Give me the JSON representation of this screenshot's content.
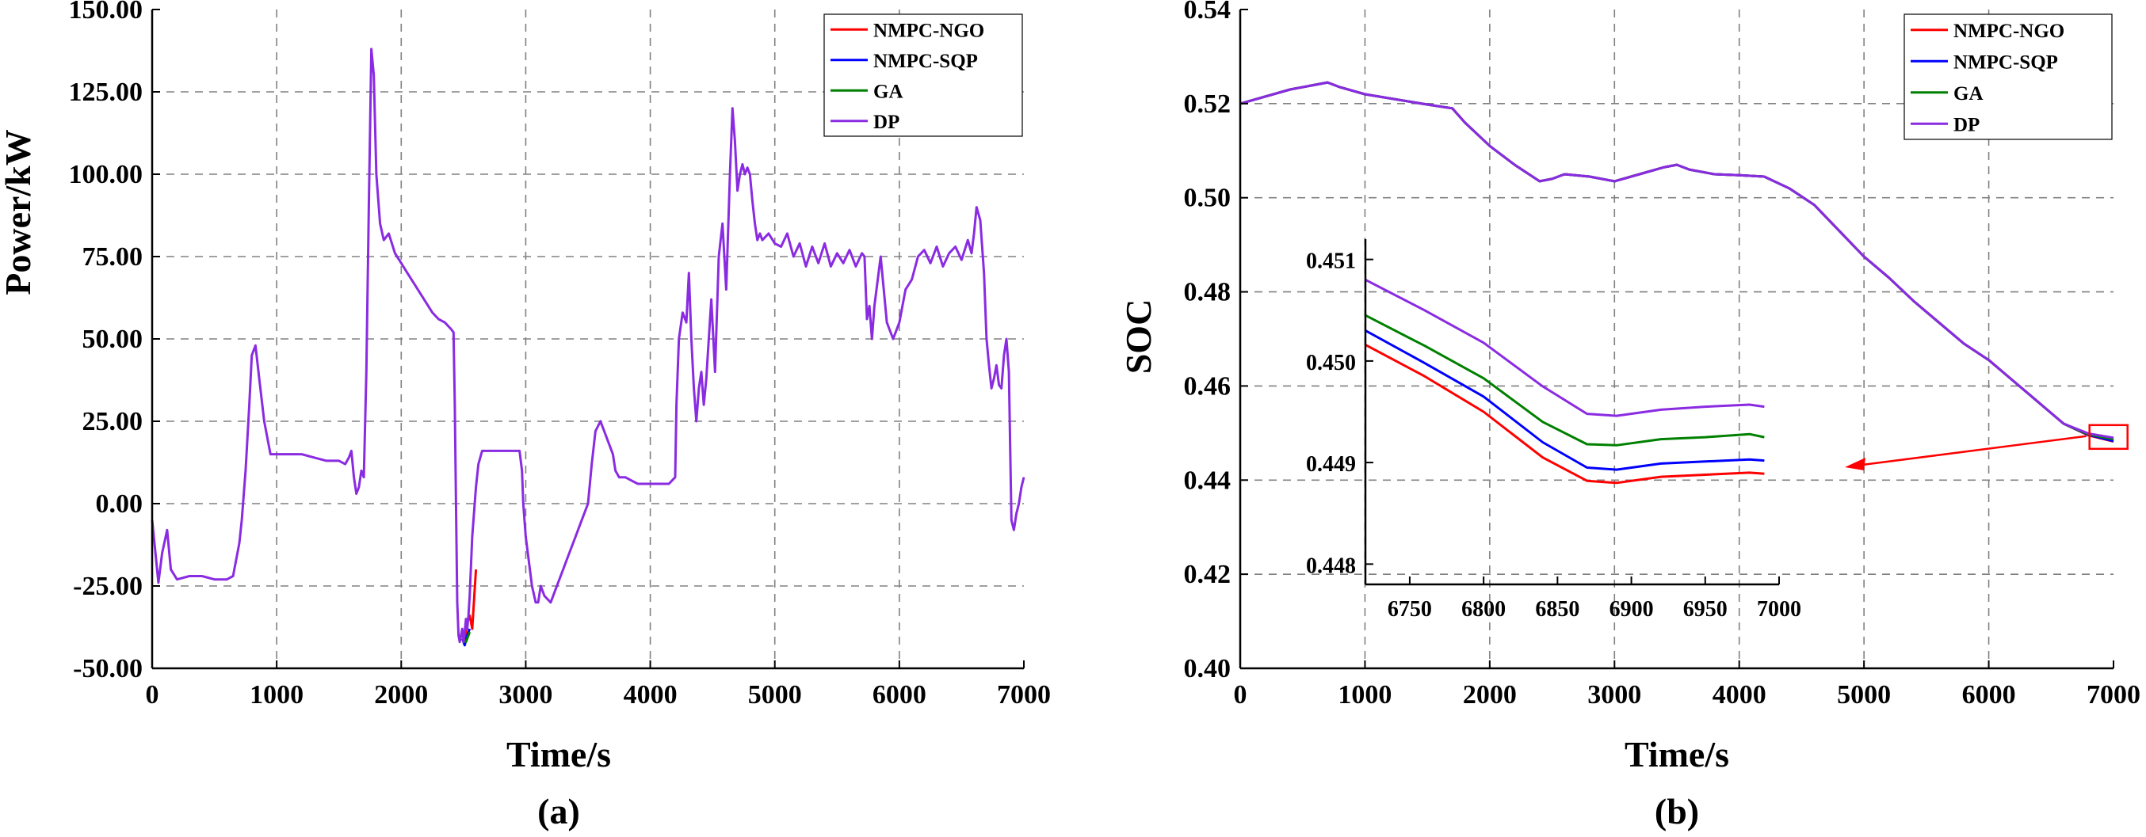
{
  "chart_data": [
    {
      "type": "line",
      "panel_label": "(a)",
      "xlabel": "Time/s",
      "ylabel": "Power/kW",
      "xlim": [
        0,
        7000
      ],
      "ylim": [
        -50,
        150
      ],
      "xticks": [
        "0",
        "1000",
        "2000",
        "3000",
        "4000",
        "5000",
        "6000",
        "7000"
      ],
      "yticks": [
        "-50.00",
        "-25.00",
        "0.00",
        "25.00",
        "50.00",
        "75.00",
        "100.00",
        "125.00",
        "150.00"
      ],
      "grid": true,
      "legend_position": "top-right",
      "series": [
        {
          "name": "NMPC-NGO",
          "color": "#ff0000",
          "x": [
            2490,
            2510,
            2530,
            2550,
            2570,
            2600
          ],
          "y": [
            -40,
            -42,
            -36,
            -34,
            -38,
            -20
          ]
        },
        {
          "name": "NMPC-SQP",
          "color": "#0000ff",
          "x": [
            2490,
            2510,
            2530,
            2550
          ],
          "y": [
            -41,
            -43,
            -40,
            -38
          ]
        },
        {
          "name": "GA",
          "color": "#008000",
          "x": [
            2490,
            2520,
            2550
          ],
          "y": [
            -41,
            -42,
            -39
          ]
        },
        {
          "name": "DP",
          "color": "#8a2be2",
          "x": [
            0,
            50,
            80,
            120,
            150,
            200,
            300,
            400,
            500,
            600,
            650,
            700,
            720,
            750,
            780,
            800,
            830,
            860,
            900,
            950,
            1000,
            1100,
            1200,
            1300,
            1400,
            1500,
            1550,
            1580,
            1600,
            1620,
            1640,
            1660,
            1680,
            1700,
            1720,
            1740,
            1760,
            1780,
            1800,
            1830,
            1860,
            1900,
            1950,
            2000,
            2050,
            2100,
            2150,
            2200,
            2250,
            2300,
            2350,
            2400,
            2420,
            2430,
            2440,
            2450,
            2460,
            2470,
            2480,
            2490,
            2500,
            2510,
            2520,
            2530,
            2540,
            2550,
            2570,
            2600,
            2620,
            2650,
            2700,
            2750,
            2800,
            2850,
            2900,
            2950,
            2970,
            2980,
            3000,
            3050,
            3080,
            3100,
            3120,
            3150,
            3200,
            3250,
            3300,
            3350,
            3400,
            3450,
            3500,
            3530,
            3560,
            3600,
            3650,
            3700,
            3720,
            3750,
            3800,
            3850,
            3900,
            3950,
            4000,
            4050,
            4100,
            4150,
            4200,
            4210,
            4230,
            4260,
            4290,
            4310,
            4330,
            4350,
            4370,
            4390,
            4410,
            4430,
            4450,
            4470,
            4490,
            4520,
            4550,
            4580,
            4610,
            4640,
            4660,
            4680,
            4700,
            4720,
            4740,
            4760,
            4780,
            4800,
            4820,
            4840,
            4860,
            4880,
            4900,
            4950,
            5000,
            5050,
            5100,
            5150,
            5200,
            5250,
            5300,
            5350,
            5400,
            5450,
            5500,
            5550,
            5600,
            5650,
            5700,
            5720,
            5740,
            5760,
            5780,
            5800,
            5850,
            5900,
            5950,
            6000,
            6050,
            6100,
            6150,
            6200,
            6250,
            6300,
            6350,
            6400,
            6450,
            6500,
            6550,
            6580,
            6600,
            6620,
            6650,
            6680,
            6700,
            6720,
            6740,
            6760,
            6780,
            6800,
            6820,
            6840,
            6860,
            6880,
            6900,
            6920,
            6940,
            6960,
            6980,
            7000
          ],
          "y": [
            -5,
            -24,
            -15,
            -8,
            -20,
            -23,
            -22,
            -22,
            -23,
            -23,
            -22,
            -12,
            -5,
            10,
            30,
            45,
            48,
            38,
            25,
            15,
            15,
            15,
            15,
            14,
            13,
            13,
            12,
            14,
            16,
            8,
            3,
            5,
            10,
            8,
            40,
            90,
            138,
            130,
            100,
            85,
            80,
            82,
            76,
            73,
            70,
            67,
            64,
            61,
            58,
            56,
            55,
            53,
            52,
            30,
            0,
            -30,
            -40,
            -42,
            -40,
            -38,
            -42,
            -39,
            -35,
            -38,
            -34,
            -28,
            -10,
            5,
            12,
            16,
            16,
            16,
            16,
            16,
            16,
            16,
            10,
            0,
            -10,
            -25,
            -30,
            -30,
            -25,
            -28,
            -30,
            -25,
            -20,
            -15,
            -10,
            -5,
            0,
            12,
            22,
            25,
            20,
            15,
            10,
            8,
            8,
            7,
            6,
            6,
            6,
            6,
            6,
            6,
            8,
            30,
            50,
            58,
            55,
            70,
            50,
            35,
            25,
            35,
            40,
            30,
            38,
            50,
            62,
            40,
            75,
            85,
            65,
            100,
            120,
            110,
            95,
            100,
            103,
            100,
            102,
            100,
            92,
            85,
            80,
            82,
            80,
            82,
            79,
            78,
            82,
            75,
            79,
            72,
            78,
            73,
            79,
            72,
            76,
            73,
            77,
            72,
            76,
            75,
            56,
            60,
            50,
            60,
            75,
            55,
            50,
            55,
            65,
            68,
            75,
            77,
            73,
            78,
            72,
            76,
            78,
            74,
            80,
            76,
            82,
            90,
            86,
            70,
            50,
            42,
            35,
            38,
            42,
            36,
            35,
            45,
            50,
            40,
            -5,
            -8,
            -3,
            0,
            5,
            8
          ]
        }
      ]
    },
    {
      "type": "line",
      "panel_label": "(b)",
      "xlabel": "Time/s",
      "ylabel": "SOC",
      "xlim": [
        0,
        7000
      ],
      "ylim": [
        0.4,
        0.54
      ],
      "xticks": [
        "0",
        "1000",
        "2000",
        "3000",
        "4000",
        "5000",
        "6000",
        "7000"
      ],
      "yticks": [
        "0.40",
        "0.42",
        "0.44",
        "0.46",
        "0.48",
        "0.50",
        "0.52",
        "0.54"
      ],
      "grid": true,
      "legend_position": "top-right",
      "series": [
        {
          "name": "NMPC-NGO",
          "color": "#ff0000",
          "x": [
            0,
            400,
            700,
            800,
            1000,
            1500,
            1700,
            1800,
            2000,
            2200,
            2400,
            2500,
            2600,
            2800,
            3000,
            3200,
            3400,
            3500,
            3600,
            3800,
            4000,
            4200,
            4400,
            4600,
            4800,
            5000,
            5200,
            5400,
            5600,
            5800,
            6000,
            6200,
            6400,
            6600,
            6800,
            7000
          ],
          "y": [
            0.52,
            0.523,
            0.5245,
            0.5235,
            0.522,
            0.5198,
            0.519,
            0.516,
            0.511,
            0.507,
            0.5035,
            0.504,
            0.505,
            0.5045,
            0.5035,
            0.505,
            0.5065,
            0.507,
            0.506,
            0.505,
            0.5048,
            0.5045,
            0.502,
            0.4985,
            0.493,
            0.4875,
            0.483,
            0.478,
            0.4735,
            0.469,
            0.4655,
            0.461,
            0.4565,
            0.452,
            0.4495,
            0.4482
          ]
        },
        {
          "name": "NMPC-SQP",
          "color": "#0000ff",
          "x": [
            0,
            400,
            700,
            800,
            1000,
            1500,
            1700,
            1800,
            2000,
            2200,
            2400,
            2500,
            2600,
            2800,
            3000,
            3200,
            3400,
            3500,
            3600,
            3800,
            4000,
            4200,
            4400,
            4600,
            4800,
            5000,
            5200,
            5400,
            5600,
            5800,
            6000,
            6200,
            6400,
            6600,
            6800,
            7000
          ],
          "y": [
            0.52,
            0.523,
            0.5245,
            0.5235,
            0.522,
            0.5198,
            0.519,
            0.516,
            0.511,
            0.507,
            0.5035,
            0.504,
            0.505,
            0.5045,
            0.5035,
            0.505,
            0.5065,
            0.507,
            0.506,
            0.505,
            0.5048,
            0.5045,
            0.502,
            0.4985,
            0.493,
            0.4875,
            0.483,
            0.478,
            0.4735,
            0.469,
            0.4655,
            0.461,
            0.4565,
            0.452,
            0.4496,
            0.4483
          ]
        },
        {
          "name": "GA",
          "color": "#008000",
          "x": [
            0,
            400,
            700,
            800,
            1000,
            1500,
            1700,
            1800,
            2000,
            2200,
            2400,
            2500,
            2600,
            2800,
            3000,
            3200,
            3400,
            3500,
            3600,
            3800,
            4000,
            4200,
            4400,
            4600,
            4800,
            5000,
            5200,
            5400,
            5600,
            5800,
            6000,
            6200,
            6400,
            6600,
            6800,
            7000
          ],
          "y": [
            0.52,
            0.523,
            0.5245,
            0.5235,
            0.522,
            0.5198,
            0.519,
            0.516,
            0.511,
            0.507,
            0.5035,
            0.504,
            0.505,
            0.5045,
            0.5035,
            0.505,
            0.5065,
            0.507,
            0.506,
            0.505,
            0.5048,
            0.5045,
            0.502,
            0.4985,
            0.493,
            0.4875,
            0.483,
            0.478,
            0.4735,
            0.469,
            0.4655,
            0.461,
            0.4565,
            0.452,
            0.4497,
            0.4487
          ]
        },
        {
          "name": "DP",
          "color": "#8a2be2",
          "x": [
            0,
            400,
            700,
            800,
            1000,
            1500,
            1700,
            1800,
            2000,
            2200,
            2400,
            2500,
            2600,
            2800,
            3000,
            3200,
            3400,
            3500,
            3600,
            3800,
            4000,
            4200,
            4400,
            4600,
            4800,
            5000,
            5200,
            5400,
            5600,
            5800,
            6000,
            6200,
            6400,
            6600,
            6800,
            7000
          ],
          "y": [
            0.52,
            0.523,
            0.5245,
            0.5235,
            0.522,
            0.5198,
            0.519,
            0.516,
            0.511,
            0.507,
            0.5035,
            0.504,
            0.505,
            0.5045,
            0.5035,
            0.505,
            0.5065,
            0.507,
            0.506,
            0.505,
            0.5048,
            0.5045,
            0.502,
            0.4985,
            0.493,
            0.4875,
            0.483,
            0.478,
            0.4735,
            0.469,
            0.4655,
            0.461,
            0.4565,
            0.452,
            0.4499,
            0.449
          ]
        }
      ],
      "inset": {
        "xlim": [
          6720,
          7000
        ],
        "ylim": [
          0.4478,
          0.4512
        ],
        "xticks": [
          "6750",
          "6800",
          "6850",
          "6900",
          "6950",
          "7000"
        ],
        "yticks": [
          "0.448",
          "0.449",
          "0.450",
          "0.451"
        ],
        "series": [
          {
            "name": "NMPC-NGO",
            "color": "#ff0000",
            "x": [
              6720,
              6760,
              6800,
              6840,
              6870,
              6890,
              6920,
              6950,
              6980,
              6990
            ],
            "y": [
              0.45016,
              0.44985,
              0.4495,
              0.44905,
              0.44882,
              0.4488,
              0.44886,
              0.44888,
              0.4489,
              0.44889
            ]
          },
          {
            "name": "NMPC-SQP",
            "color": "#0000ff",
            "x": [
              6720,
              6760,
              6800,
              6840,
              6870,
              6890,
              6920,
              6950,
              6980,
              6990
            ],
            "y": [
              0.4503,
              0.44998,
              0.44965,
              0.4492,
              0.44895,
              0.44893,
              0.44899,
              0.44901,
              0.44903,
              0.44902
            ]
          },
          {
            "name": "GA",
            "color": "#008000",
            "x": [
              6720,
              6760,
              6800,
              6840,
              6870,
              6890,
              6920,
              6950,
              6980,
              6990
            ],
            "y": [
              0.45045,
              0.45015,
              0.44983,
              0.4494,
              0.44918,
              0.44917,
              0.44923,
              0.44925,
              0.44928,
              0.44925
            ]
          },
          {
            "name": "DP",
            "color": "#8a2be2",
            "x": [
              6720,
              6760,
              6800,
              6840,
              6870,
              6890,
              6920,
              6950,
              6980,
              6990
            ],
            "y": [
              0.4508,
              0.4505,
              0.45018,
              0.44975,
              0.44948,
              0.44946,
              0.44952,
              0.44955,
              0.44957,
              0.44955
            ]
          }
        ]
      }
    }
  ]
}
